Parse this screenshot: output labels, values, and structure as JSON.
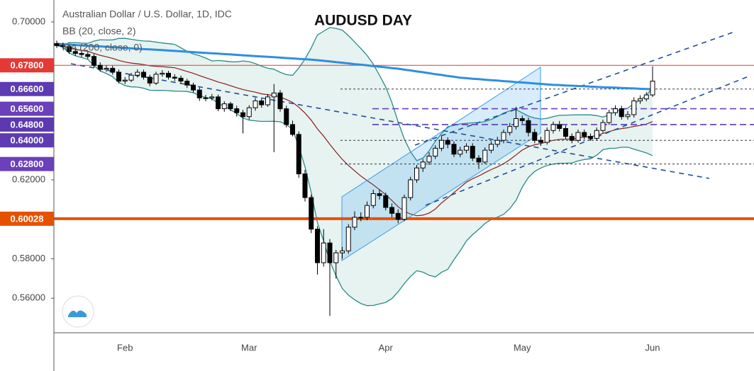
{
  "chart_data": {
    "type": "candlestick",
    "title": "AUDUSD DAY",
    "symbol_label": "Australian Dollar / U.S. Dollar, 1D, IDC",
    "categories": [
      null,
      null,
      null,
      null,
      null,
      null,
      null,
      null,
      null,
      null,
      null,
      "Feb",
      null,
      null,
      null,
      null,
      null,
      null,
      null,
      null,
      null,
      null,
      null,
      null,
      null,
      null,
      null,
      null,
      null,
      null,
      null,
      "Mar",
      null,
      null,
      null,
      null,
      null,
      null,
      null,
      null,
      null,
      null,
      null,
      null,
      null,
      null,
      null,
      null,
      null,
      null,
      null,
      null,
      null,
      "Apr",
      null,
      null,
      null,
      null,
      null,
      null,
      null,
      null,
      null,
      null,
      null,
      null,
      null,
      null,
      null,
      null,
      null,
      null,
      null,
      null,
      null,
      "May",
      null,
      null,
      null,
      null,
      null,
      null,
      null,
      null,
      null,
      null,
      null,
      null,
      null,
      null,
      null,
      null,
      null,
      null,
      null,
      null,
      "Jun"
    ],
    "open": [
      0.689,
      0.688,
      0.6875,
      0.685,
      0.684,
      0.6835,
      0.6825,
      0.678,
      0.676,
      0.6765,
      0.6745,
      0.67,
      0.6705,
      0.673,
      0.6745,
      0.672,
      0.669,
      0.6735,
      0.674,
      0.672,
      0.6715,
      0.67,
      0.668,
      0.6655,
      0.6615,
      0.6615,
      0.662,
      0.656,
      0.6585,
      0.656,
      0.654,
      0.652,
      0.6565,
      0.66,
      0.658,
      0.662,
      0.664,
      0.656,
      0.648,
      0.643,
      0.623,
      0.611,
      0.595,
      0.578,
      0.588,
      0.578,
      0.583,
      0.584,
      0.596,
      0.601,
      0.601,
      0.607,
      0.613,
      0.612,
      0.606,
      0.603,
      0.6,
      0.611,
      0.62,
      0.626,
      0.629,
      0.632,
      0.636,
      0.64,
      0.638,
      0.633,
      0.635,
      0.637,
      0.631,
      0.629,
      0.635,
      0.638,
      0.64,
      0.644,
      0.647,
      0.651,
      0.65,
      0.644,
      0.64,
      0.639,
      0.645,
      0.648,
      0.646,
      0.642,
      0.64,
      0.644,
      0.642,
      0.641,
      0.645,
      0.649,
      0.654,
      0.656,
      0.652,
      0.653,
      0.66,
      0.661,
      0.663
    ],
    "high": [
      0.6905,
      0.6895,
      0.6888,
      0.6862,
      0.6852,
      0.6848,
      0.6838,
      0.6795,
      0.678,
      0.6778,
      0.6758,
      0.672,
      0.6742,
      0.676,
      0.6758,
      0.6732,
      0.6748,
      0.6755,
      0.6752,
      0.6735,
      0.6728,
      0.6712,
      0.6692,
      0.6668,
      0.663,
      0.6635,
      0.6632,
      0.6598,
      0.6595,
      0.6575,
      0.6555,
      0.6578,
      0.6615,
      0.6615,
      0.6635,
      0.6685,
      0.6655,
      0.6575,
      0.65,
      0.6445,
      0.625,
      0.6125,
      0.5965,
      0.595,
      0.59,
      0.5845,
      0.586,
      0.5975,
      0.604,
      0.6035,
      0.609,
      0.615,
      0.615,
      0.6135,
      0.608,
      0.605,
      0.6125,
      0.6215,
      0.6275,
      0.6305,
      0.634,
      0.6375,
      0.642,
      0.6415,
      0.6395,
      0.6368,
      0.6385,
      0.6385,
      0.6325,
      0.6365,
      0.6395,
      0.6418,
      0.6455,
      0.6488,
      0.657,
      0.6525,
      0.6515,
      0.6458,
      0.6418,
      0.6465,
      0.6495,
      0.6498,
      0.6475,
      0.6435,
      0.6455,
      0.6455,
      0.6435,
      0.6465,
      0.6505,
      0.6555,
      0.6578,
      0.6575,
      0.6548,
      0.6618,
      0.6628,
      0.6645,
      0.6775
    ],
    "low": [
      0.6868,
      0.6862,
      0.6838,
      0.6828,
      0.6822,
      0.6812,
      0.6768,
      0.6748,
      0.6748,
      0.6732,
      0.6688,
      0.6685,
      0.6695,
      0.6718,
      0.6708,
      0.6675,
      0.668,
      0.6722,
      0.6708,
      0.67,
      0.6688,
      0.6665,
      0.6642,
      0.66,
      0.6598,
      0.6602,
      0.6548,
      0.6545,
      0.6548,
      0.652,
      0.6435,
      0.6505,
      0.655,
      0.6565,
      0.657,
      0.634,
      0.6545,
      0.6465,
      0.642,
      0.621,
      0.609,
      0.593,
      0.572,
      0.576,
      0.551,
      0.57,
      0.58,
      0.5825,
      0.5945,
      0.599,
      0.5995,
      0.6055,
      0.61,
      0.6045,
      0.601,
      0.598,
      0.599,
      0.6095,
      0.6185,
      0.624,
      0.6275,
      0.6305,
      0.6345,
      0.636,
      0.6315,
      0.6315,
      0.6335,
      0.6295,
      0.6255,
      0.628,
      0.6335,
      0.6365,
      0.6385,
      0.6425,
      0.6455,
      0.6485,
      0.642,
      0.6385,
      0.6372,
      0.6378,
      0.6435,
      0.6445,
      0.6405,
      0.6385,
      0.6388,
      0.6405,
      0.6398,
      0.64,
      0.6438,
      0.6478,
      0.6525,
      0.6505,
      0.6505,
      0.6515,
      0.6585,
      0.6598,
      0.662
    ],
    "close": [
      0.688,
      0.6875,
      0.685,
      0.684,
      0.6835,
      0.6825,
      0.678,
      0.676,
      0.6765,
      0.6745,
      0.67,
      0.6705,
      0.673,
      0.6745,
      0.672,
      0.669,
      0.6735,
      0.674,
      0.672,
      0.6715,
      0.67,
      0.668,
      0.6655,
      0.6615,
      0.6615,
      0.662,
      0.656,
      0.6585,
      0.656,
      0.654,
      0.652,
      0.6565,
      0.66,
      0.658,
      0.662,
      0.664,
      0.656,
      0.648,
      0.643,
      0.623,
      0.611,
      0.595,
      0.578,
      0.588,
      0.578,
      0.583,
      0.584,
      0.596,
      0.601,
      0.601,
      0.607,
      0.613,
      0.612,
      0.606,
      0.603,
      0.6,
      0.611,
      0.62,
      0.626,
      0.629,
      0.632,
      0.636,
      0.64,
      0.638,
      0.633,
      0.635,
      0.637,
      0.631,
      0.629,
      0.635,
      0.638,
      0.64,
      0.644,
      0.647,
      0.651,
      0.65,
      0.644,
      0.64,
      0.639,
      0.645,
      0.648,
      0.646,
      0.642,
      0.64,
      0.644,
      0.642,
      0.641,
      0.645,
      0.649,
      0.654,
      0.656,
      0.652,
      0.653,
      0.66,
      0.661,
      0.663,
      0.67
    ],
    "up_color": "#ffffff",
    "down_color": "#000000",
    "indicators": [
      {
        "name": "BB (20, close, 2)",
        "color": "#2a8a86",
        "basis_color": "#8b1c1c",
        "fill": "#e6f3f1"
      },
      {
        "name": "MA (200, close, 0)",
        "color": "#2f8ee0",
        "values": [
          0.6889,
          0.6887,
          0.6885,
          0.6883,
          0.6881,
          0.6879,
          0.6877,
          0.6876,
          0.6874,
          0.6872,
          0.687,
          0.6868,
          0.6866,
          0.6864,
          0.6862,
          0.6861,
          0.6859,
          0.6857,
          0.6855,
          0.6853,
          0.6851,
          0.6849,
          0.6847,
          0.6845,
          0.6843,
          0.6841,
          0.6839,
          0.6837,
          0.6835,
          0.6833,
          0.6831,
          0.6829,
          0.6827,
          0.6825,
          0.6823,
          0.6821,
          0.6819,
          0.6817,
          0.6815,
          0.6813,
          0.6811,
          0.6809,
          0.6806,
          0.6803,
          0.68,
          0.6796,
          0.6793,
          0.679,
          0.6786,
          0.6783,
          0.678,
          0.6776,
          0.6773,
          0.677,
          0.6766,
          0.6763,
          0.6758,
          0.6754,
          0.6749,
          0.6745,
          0.674,
          0.6735,
          0.6731,
          0.6726,
          0.6722,
          0.6717,
          0.6715,
          0.6712,
          0.671,
          0.6707,
          0.6705,
          0.6703,
          0.67,
          0.6698,
          0.6695,
          0.6693,
          0.6691,
          0.6688,
          0.6686,
          0.6683,
          0.6681,
          0.668,
          0.6678,
          0.6677,
          0.6675,
          0.6674,
          0.6672,
          0.6671,
          0.6669,
          0.6668,
          0.6667,
          0.6665,
          0.6664,
          0.6663,
          0.6661,
          0.666,
          0.6659
        ]
      }
    ],
    "levels": [
      {
        "value": 0.678,
        "label": "0.67800",
        "color": "#e53935",
        "style": "solid"
      },
      {
        "value": 0.666,
        "label": "0.66600",
        "color": "#5e3bb3",
        "style": "dotted"
      },
      {
        "value": 0.656,
        "label": "0.65600",
        "color": "#6a40bb",
        "style": "dashed"
      },
      {
        "value": 0.648,
        "label": "0.64800",
        "color": "#5c39b0",
        "style": "dashed"
      },
      {
        "value": 0.64,
        "label": "0.64000",
        "color": "#5e3bb3",
        "style": "dotted"
      },
      {
        "value": 0.628,
        "label": "0.62800",
        "color": "#6a40bb",
        "style": "dotted"
      },
      {
        "value": 0.60028,
        "label": "0.60028",
        "color": "#e65100",
        "style": "thick"
      }
    ],
    "ylim": [
      0.5425,
      0.7111
    ],
    "yticks": [
      {
        "value": 0.7,
        "label": "0.70000"
      },
      {
        "value": 0.62,
        "label": "0.62000"
      },
      {
        "value": 0.58,
        "label": "0.58000"
      },
      {
        "value": 0.56,
        "label": "0.56000"
      }
    ]
  }
}
